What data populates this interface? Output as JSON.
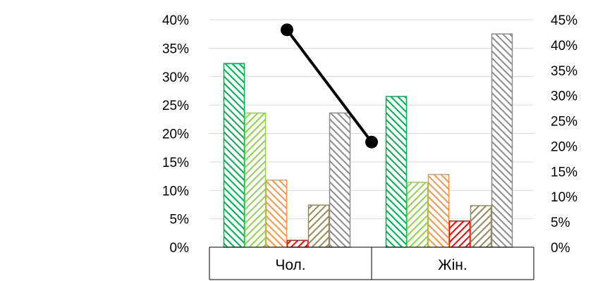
{
  "chart_data": {
    "type": "bar",
    "categories": [
      "Чол.",
      "Жін."
    ],
    "series": [
      {
        "values": [
          32.3,
          26.5
        ],
        "color": "#00b050",
        "pattern": "hatch-backslash"
      },
      {
        "values": [
          23.6,
          11.4
        ],
        "color": "#92d050",
        "pattern": "hatch-slash"
      },
      {
        "values": [
          11.8,
          12.8
        ],
        "color": "#f79646",
        "pattern": "hatch-backslash"
      },
      {
        "values": [
          1.2,
          4.6
        ],
        "color": "#ff0000",
        "pattern": "hatch-slash"
      },
      {
        "values": [
          7.4,
          7.3
        ],
        "color": "#948a54",
        "pattern": "hatch-slash"
      },
      {
        "values": [
          23.6,
          37.5
        ],
        "color": "#8c8c8c",
        "pattern": "hatch-backslash"
      }
    ],
    "line_series": [
      {
        "values": [
          43.0,
          20.8
        ],
        "color": "#000000",
        "axis": "secondary"
      }
    ],
    "y_left": {
      "ylim": [
        0,
        40
      ],
      "ticks": [
        "0%",
        "5%",
        "10%",
        "15%",
        "20%",
        "25%",
        "30%",
        "35%",
        "40%"
      ]
    },
    "y_right": {
      "ylim": [
        0,
        45
      ],
      "ticks": [
        "0%",
        "5%",
        "10%",
        "15%",
        "20%",
        "25%",
        "30%",
        "35%",
        "40%",
        "45%"
      ]
    },
    "grid": true,
    "legend": "none",
    "title": "",
    "xlabel": "",
    "ylabel": ""
  }
}
